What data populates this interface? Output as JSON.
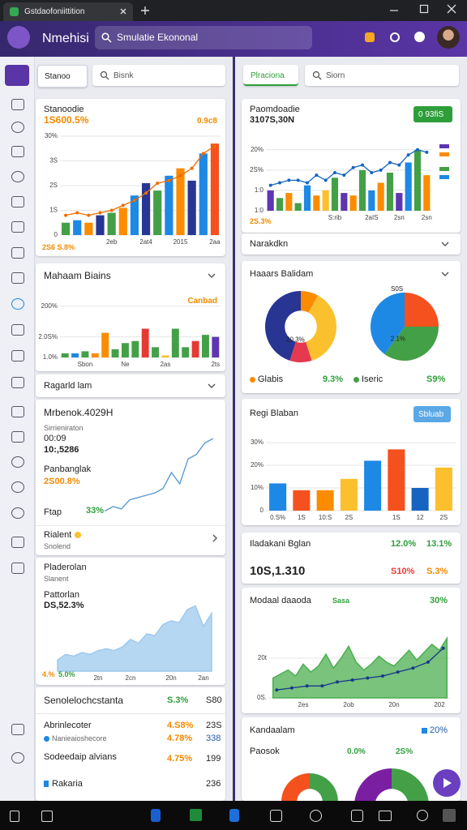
{
  "browser": {
    "tab_title": "Gstdaofoniittition"
  },
  "header": {
    "app_name": "Nmehisi",
    "search_placeholder": "Smulatie Ekononal"
  },
  "left": {
    "tabs": {
      "active": "Stanoo",
      "search_placeholder": "Bisnk"
    },
    "card1": {
      "title": "Stanoodie",
      "value": "1S600.5%",
      "badge": "0.9c8",
      "footer": "2S6 S.8%",
      "chart": {
        "type": "bar",
        "ylim": [
          0,
          40
        ],
        "grid": true,
        "yticks": [
          {
            "value": 0,
            "label": "0"
          },
          {
            "value": 10,
            "label": "1S"
          },
          {
            "value": 20,
            "label": "2S"
          },
          {
            "value": 30,
            "label": "3S"
          },
          {
            "value": 40,
            "label": "30%"
          }
        ],
        "categories": [
          null,
          null,
          null,
          null,
          "2eb",
          null,
          null,
          "2at4",
          null,
          null,
          "2015",
          null,
          null,
          "2aa"
        ],
        "values": [
          5,
          6,
          5,
          8,
          9,
          11,
          16,
          21,
          18,
          24,
          27,
          22,
          33,
          37
        ],
        "colors": [
          "#43a047",
          "#1e88e5",
          "#fb8c00",
          "#283593",
          "#43a047",
          "#fb8c00",
          "#1e88e5",
          "#283593",
          "#43a047",
          "#1e88e5",
          "#fb8c00",
          "#283593",
          "#1e88e5",
          "#f4511e"
        ],
        "line": {
          "values": [
            8,
            9,
            8,
            9,
            10,
            12,
            14,
            17,
            21,
            22,
            24,
            27,
            33,
            36
          ],
          "color": "#ef6c00",
          "dots": true
        }
      }
    },
    "card2": {
      "title": "Mahaam Biains",
      "badge": "Canbad",
      "chart": {
        "type": "bar",
        "ylim": [
          0,
          30
        ],
        "grid": true,
        "yticks": [
          {
            "value": 0,
            "label": "1.0%"
          },
          {
            "value": 10,
            "label": "2.0S%"
          },
          {
            "value": 25,
            "label": "200%"
          }
        ],
        "categories": [
          null,
          null,
          "Sbon",
          null,
          null,
          null,
          "Ne",
          null,
          null,
          null,
          "2as",
          null,
          null,
          null,
          null,
          "2ts"
        ],
        "values": [
          2,
          2,
          3,
          2,
          12,
          4,
          7,
          8,
          14,
          5,
          1,
          14,
          5,
          8,
          11,
          10
        ],
        "colors": [
          "#43a047",
          "#1e88e5",
          "#43a047",
          "#fb8c00",
          "#fb8c00",
          "#43a047",
          "#43a047",
          "#43a047",
          "#e53935",
          "#43a047",
          "#fbc02d",
          "#43a047",
          "#43a047",
          "#e53935",
          "#43a047",
          "#5e35b1"
        ]
      }
    },
    "row1": {
      "title": "Ragarld lam"
    },
    "card3": {
      "title": "Mrbenok.4029H",
      "subtitle": "Sirrieniraton",
      "time": "00:09",
      "value": "10:,5286",
      "label2": "Panbanglak",
      "value2": "2S00.8%",
      "label3": "Ftap",
      "value3": "33%",
      "chart": {
        "type": "line",
        "ylim": [
          0,
          40
        ],
        "values": [
          3,
          5,
          4,
          8,
          9,
          10,
          11,
          13,
          20,
          15,
          26,
          28,
          33,
          35
        ],
        "color": "#5b9bd5"
      },
      "footer_title": "Rialent",
      "footer_subtitle": "Snolend"
    },
    "card4": {
      "title": "Pladerolan",
      "subtitle": "Slanent",
      "label": "Pattorlan",
      "value": "DS,52.3%",
      "start_label": "4.%",
      "change": "5.0%",
      "chart": {
        "type": "area",
        "ylim": [
          0,
          40
        ],
        "color": "#9cc9ee",
        "categories": [
          null,
          null,
          null,
          null,
          null,
          "2tn",
          null,
          null,
          null,
          "2cn",
          null,
          null,
          null,
          null,
          "20n",
          null,
          null,
          null,
          "2an",
          null
        ],
        "values": [
          6,
          9,
          8,
          10,
          9,
          11,
          12,
          11,
          13,
          17,
          15,
          20,
          19,
          25,
          27,
          26,
          33,
          35,
          24,
          31
        ]
      }
    },
    "list": {
      "title": "Senolelochcstanta",
      "pct": "S.3%",
      "count": "S80",
      "rows": [
        {
          "name": "Abrinlecoter",
          "pct": "4.S8%",
          "count": "23S"
        },
        {
          "name": "Nanieaioshecore",
          "pct": "4.78%",
          "count": "338"
        },
        {
          "name": "Sodeedaip alvians",
          "pct": "4.75%",
          "count": "199"
        },
        {
          "name": "Rakaria",
          "count": "236"
        }
      ]
    }
  },
  "right": {
    "tabs": {
      "active": "Plraciona",
      "search_placeholder": "Siorn"
    },
    "card1": {
      "title": "Paomdoadie",
      "value": "3107S,30N",
      "button": "0 93fiS",
      "footer": "2S.3%",
      "chart": {
        "type": "bar",
        "ylim": [
          0,
          30
        ],
        "grid": true,
        "yticks": [
          {
            "value": 0,
            "label": "1:0"
          },
          {
            "value": 8,
            "label": "1:0"
          },
          {
            "value": 16,
            "label": "2S%"
          },
          {
            "value": 24,
            "label": "20%"
          }
        ],
        "categories": [
          null,
          null,
          null,
          null,
          null,
          null,
          null,
          "S:rib",
          null,
          null,
          null,
          "2aIS",
          null,
          null,
          "2sn",
          null,
          null,
          "2sn"
        ],
        "values": [
          8,
          5,
          7,
          3,
          10,
          6,
          8,
          13,
          7,
          6,
          16,
          8,
          11,
          15,
          7,
          19,
          24,
          14
        ],
        "colors": [
          "#5e35b1",
          "#43a047",
          "#fb8c00",
          "#43a047",
          "#1e88e5",
          "#fb8c00",
          "#fbc02d",
          "#43a047",
          "#5e35b1",
          "#fb8c00",
          "#43a047",
          "#1e88e5",
          "#fb8c00",
          "#43a047",
          "#5e35b1",
          "#1e88e5",
          "#43a047",
          "#fb8c00"
        ],
        "line": {
          "values": [
            10,
            11,
            12,
            12,
            11,
            14,
            12,
            15,
            14,
            17,
            18,
            15,
            16,
            19,
            18,
            22,
            24,
            23
          ],
          "color": "#1565c0",
          "dots": true
        }
      }
    },
    "row1": {
      "title": "Narakdkn"
    },
    "card2": {
      "title": "Haaars Balidam",
      "pie1": {
        "type": "pie",
        "donut": true,
        "label": "20.3%",
        "values": [
          8,
          37,
          10,
          45
        ],
        "colors": [
          "#fb8c00",
          "#fbc02d",
          "#e53950",
          "#283593"
        ]
      },
      "pie2": {
        "type": "pie",
        "donut": false,
        "label": "2.1%",
        "top_label": "S0S",
        "values": [
          25,
          35,
          40
        ],
        "colors": [
          "#f4511e",
          "#43a047",
          "#1e88e5"
        ]
      },
      "legend": [
        {
          "name": "Glabis",
          "value": "9.3%",
          "color": "#fb8c00"
        },
        {
          "name": "Iseric",
          "value": "S9%",
          "color": "#43a047"
        }
      ]
    },
    "card3": {
      "title": "Regi Blaban",
      "badge": "Sbluab",
      "chart": {
        "type": "bar",
        "ylim": [
          0,
          35
        ],
        "grid": true,
        "yticks": [
          {
            "value": 0,
            "label": "0"
          },
          {
            "value": 10,
            "label": "10%"
          },
          {
            "value": 20,
            "label": "20%"
          },
          {
            "value": 30,
            "label": "30%"
          }
        ],
        "categories": [
          "0.S%",
          "1S",
          "10:S",
          "2S",
          null,
          "1S",
          "12",
          "2S"
        ],
        "values": [
          12,
          9,
          9,
          14,
          22,
          27,
          10,
          19
        ],
        "colors": [
          "#1e88e5",
          "#f4511e",
          "#fb8c00",
          "#fbc02d",
          "#1e88e5",
          "#f4511e",
          "#1565c0",
          "#fbc02d"
        ]
      }
    },
    "card4": {
      "title": "Iladakani Bglan",
      "pct1": "12.0%",
      "pct2": "13.1%",
      "value": "10S,1.310",
      "delta1": "S10%",
      "delta2": "S.3%"
    },
    "card5": {
      "title": "Modaal daaoda",
      "tag": "Sasa",
      "pct": "30%",
      "chart": {
        "type": "area",
        "ylim": [
          0,
          40
        ],
        "grid": true,
        "color": "#4caf50",
        "yticks": [
          {
            "value": 0,
            "label": "0S."
          },
          {
            "value": 20,
            "label": "20t"
          }
        ],
        "categories": [
          null,
          null,
          null,
          null,
          "2es",
          null,
          null,
          null,
          null,
          null,
          "2ob",
          null,
          null,
          null,
          null,
          null,
          "20n",
          null,
          null,
          null,
          null,
          null,
          "202",
          null
        ],
        "values": [
          10,
          12,
          14,
          11,
          17,
          13,
          16,
          22,
          15,
          20,
          26,
          18,
          14,
          17,
          21,
          18,
          16,
          20,
          24,
          19,
          23,
          27,
          24,
          30
        ],
        "line": {
          "values": [
            4,
            5,
            6,
            6,
            8,
            9,
            10,
            11,
            13,
            15,
            18,
            25
          ],
          "color": "#1a3a8a",
          "dots": true
        }
      }
    },
    "card6": {
      "title": "Kandaalam",
      "pct": "20%",
      "label": "Paosok",
      "value1": "0.0%",
      "value2": "2S%",
      "pie1": {
        "type": "pie",
        "donut": true,
        "values": [
          40,
          35,
          25
        ],
        "colors": [
          "#43a047",
          "#fbc02d",
          "#f4511e"
        ]
      },
      "pie2": {
        "type": "pie",
        "donut": true,
        "values": [
          30,
          45,
          25
        ],
        "colors": [
          "#43a047",
          "#fbc02d",
          "#7b1fa2"
        ]
      }
    }
  }
}
